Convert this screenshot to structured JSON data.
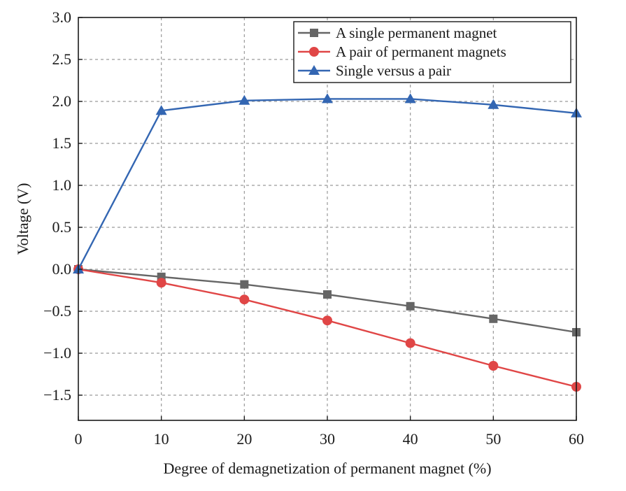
{
  "chart_data": {
    "type": "line",
    "title": "",
    "xlabel": "Degree of demagnetization of permanent magnet (%)",
    "ylabel": "Voltage (V)",
    "xlim": [
      0,
      60
    ],
    "ylim": [
      -1.8,
      3.0
    ],
    "x_ticks": [
      0,
      10,
      20,
      30,
      40,
      50,
      60
    ],
    "x_tick_labels": [
      "0",
      "10",
      "20",
      "30",
      "40",
      "50",
      "60"
    ],
    "y_ticks": [
      -1.5,
      -1.0,
      -0.5,
      0.0,
      0.5,
      1.0,
      1.5,
      2.0,
      2.5,
      3.0
    ],
    "y_tick_labels": [
      "−1.5",
      "−1.0",
      "−0.5",
      "0.0",
      "0.5",
      "1.0",
      "1.5",
      "2.0",
      "2.5",
      "3.0"
    ],
    "grid": true,
    "legend_position": "top-right",
    "x": [
      0,
      10,
      20,
      30,
      40,
      50,
      60
    ],
    "series": [
      {
        "name": "A single permanent magnet",
        "values": [
          0.0,
          -0.09,
          -0.18,
          -0.3,
          -0.44,
          -0.59,
          -0.75
        ],
        "color": "#666666",
        "marker": "square"
      },
      {
        "name": "A pair of permanent magnets",
        "values": [
          0.0,
          -0.16,
          -0.36,
          -0.61,
          -0.88,
          -1.15,
          -1.4
        ],
        "color": "#e04646",
        "marker": "circle"
      },
      {
        "name": "Single versus a pair",
        "values": [
          0.0,
          1.89,
          2.01,
          2.03,
          2.03,
          1.96,
          1.86
        ],
        "color": "#3366b2",
        "marker": "triangle"
      }
    ]
  }
}
